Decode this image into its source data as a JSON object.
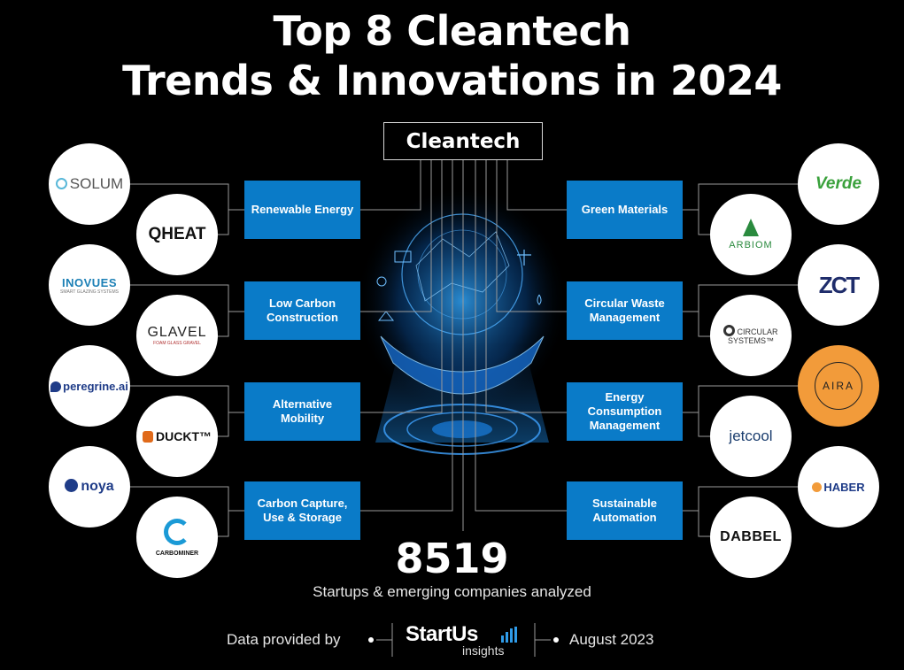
{
  "title": {
    "line1": "Top 8 Cleantech",
    "line2": "Trends & Innovations in 2024"
  },
  "hub": "Cleantech",
  "trends_left": [
    "Renewable Energy",
    "Low Carbon Construction",
    "Alternative Mobility",
    "Carbon Capture, Use & Storage"
  ],
  "trends_right": [
    "Green Materials",
    "Circular Waste Management",
    "Energy Consumption Management",
    "Sustainable Automation"
  ],
  "logos_left": [
    {
      "name": "SOLUM",
      "color": "#555555"
    },
    {
      "name": "QHEAT",
      "color": "#111111"
    },
    {
      "name": "INOVUES",
      "sub": "SMART GLAZING SYSTEMS",
      "color": "#1b7fb5"
    },
    {
      "name": "GLAVEL",
      "sub": "FOAM GLASS GRAVEL",
      "color": "#222222"
    },
    {
      "name": "peregrine.ai",
      "color": "#1f3c88"
    },
    {
      "name": "DUCKT™",
      "color": "#111111"
    },
    {
      "name": "noya",
      "color": "#1f3c88"
    },
    {
      "name": "CARBOMINER",
      "color": "#111111"
    }
  ],
  "logos_right": [
    {
      "name": "Verde",
      "color": "#3aa13c"
    },
    {
      "name": "ARBIOM",
      "color": "#2a8a3e"
    },
    {
      "name": "ZCT",
      "color": "#1f2d6b"
    },
    {
      "name": "CIRCULAR SYSTEMS™",
      "color": "#333333"
    },
    {
      "name": "AIRA",
      "color": "#222222"
    },
    {
      "name": "jetcool",
      "color": "#1a3d6e"
    },
    {
      "name": "HABER",
      "color": "#1f3c88"
    },
    {
      "name": "DABBEL",
      "color": "#111111"
    }
  ],
  "stats": {
    "number": "8519",
    "text": "Startups & emerging companies analyzed"
  },
  "footer": {
    "left": "Data provided by",
    "brand": "StartUs",
    "brand_sub": "insights",
    "right": "August 2023"
  },
  "colors": {
    "trend_box": "#0a7bc8",
    "background": "#000000",
    "accent": "#2f9be8"
  }
}
